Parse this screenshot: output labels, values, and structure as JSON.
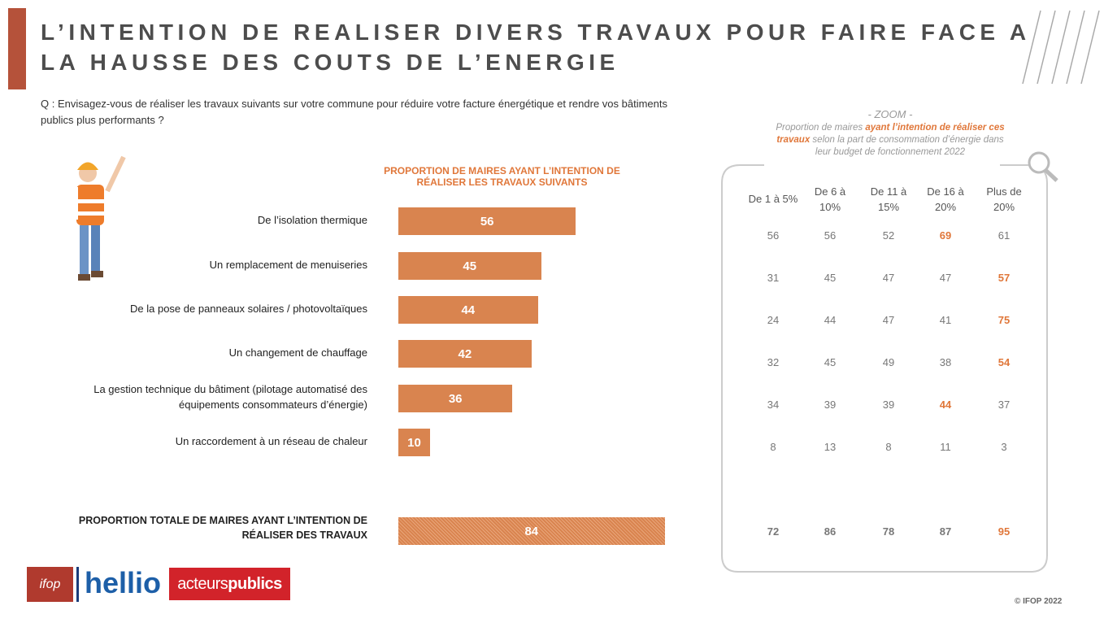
{
  "title_lines": [
    "L’INTENTION DE REALISER DIVERS TRAVAUX POUR FAIRE FACE A",
    "LA HAUSSE DES COUTS DE L’ENERGIE"
  ],
  "question": "Q : Envisagez-vous de réaliser les travaux suivants sur votre commune pour réduire votre facture énergétique et rendre vos bâtiments publics plus performants ?",
  "chart_data": {
    "type": "bar",
    "orientation": "horizontal",
    "title": "PROPORTION DE MAIRES AYANT L’INTENTION DE RÉALISER LES TRAVAUX SUIVANTS",
    "categories": [
      "De l’isolation thermique",
      "Un remplacement de menuiseries",
      "De la pose de panneaux solaires / photovoltaïques",
      "Un changement de chauffage",
      "La gestion technique du bâtiment (pilotage automatisé des\néquipements consommateurs d’énergie)",
      "Un raccordement à un réseau de chaleur"
    ],
    "values": [
      56,
      45,
      44,
      42,
      36,
      10
    ],
    "color": "#d9844f",
    "total": {
      "label": "PROPORTION TOTALE DE MAIRES AYANT L’INTENTION DE\nRÉALISER DES TRAVAUX",
      "value": 84
    }
  },
  "zoom": {
    "heading": "- ZOOM -",
    "caption": [
      "Proportion de maires ",
      "ayant l’intention de réaliser ces travaux",
      " selon la part de consommation d’énergie dans leur budget de fonctionnement 2022"
    ],
    "columns": [
      [
        "De 1 à 5%"
      ],
      [
        "De 6 à",
        "10%"
      ],
      [
        "De 11 à",
        "15%"
      ],
      [
        "De 16 à",
        "20%"
      ],
      [
        "Plus de",
        "20%"
      ]
    ],
    "rows": [
      [
        56,
        56,
        52,
        69,
        61
      ],
      [
        31,
        45,
        47,
        47,
        57
      ],
      [
        24,
        44,
        47,
        41,
        75
      ],
      [
        32,
        45,
        49,
        38,
        54
      ],
      [
        34,
        39,
        39,
        44,
        37
      ],
      [
        8,
        13,
        8,
        11,
        3
      ]
    ],
    "highlight": [
      3,
      4,
      4,
      4,
      3,
      null
    ],
    "total_row": [
      72,
      86,
      78,
      87,
      95
    ],
    "total_highlight": 4
  },
  "logos": {
    "ifop": "ifop",
    "hellio": "hellio",
    "acteurs": "acteurs",
    "publics": "publics"
  },
  "copyright": "© IFOP 2022"
}
